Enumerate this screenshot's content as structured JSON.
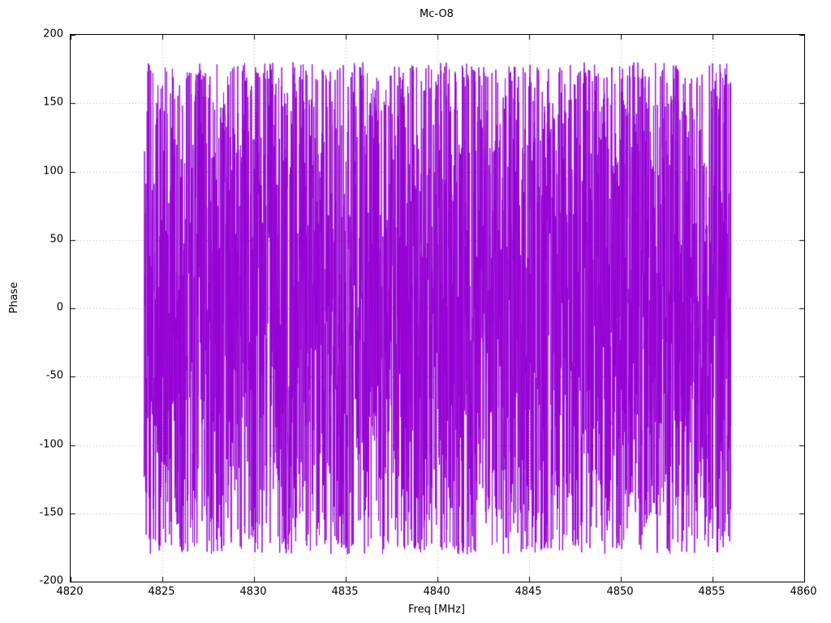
{
  "chart_data": {
    "type": "line",
    "title": "Mc-O8",
    "xlabel": "Freq [MHz]",
    "ylabel": "Phase",
    "xlim": [
      4820,
      4860
    ],
    "ylim": [
      -200,
      200
    ],
    "x_ticks": [
      4820,
      4825,
      4830,
      4835,
      4840,
      4845,
      4850,
      4855,
      4860
    ],
    "y_ticks": [
      -200,
      -150,
      -100,
      -50,
      0,
      50,
      100,
      150,
      200
    ],
    "grid": true,
    "legend": "none",
    "series": [
      {
        "name": "Mc-O8 phase",
        "color": "#9400d3",
        "style": "connected line, dense wrapped-phase noise",
        "x_start": 4824.0,
        "x_end": 4856.0,
        "n_points": 3200,
        "y_distribution": "uniform wrapped phase",
        "y_min": -180,
        "y_max": 180,
        "seed": 8
      }
    ]
  },
  "layout_labels": {
    "title": "Mc-O8",
    "xlabel": "Freq [MHz]",
    "ylabel": "Phase"
  }
}
